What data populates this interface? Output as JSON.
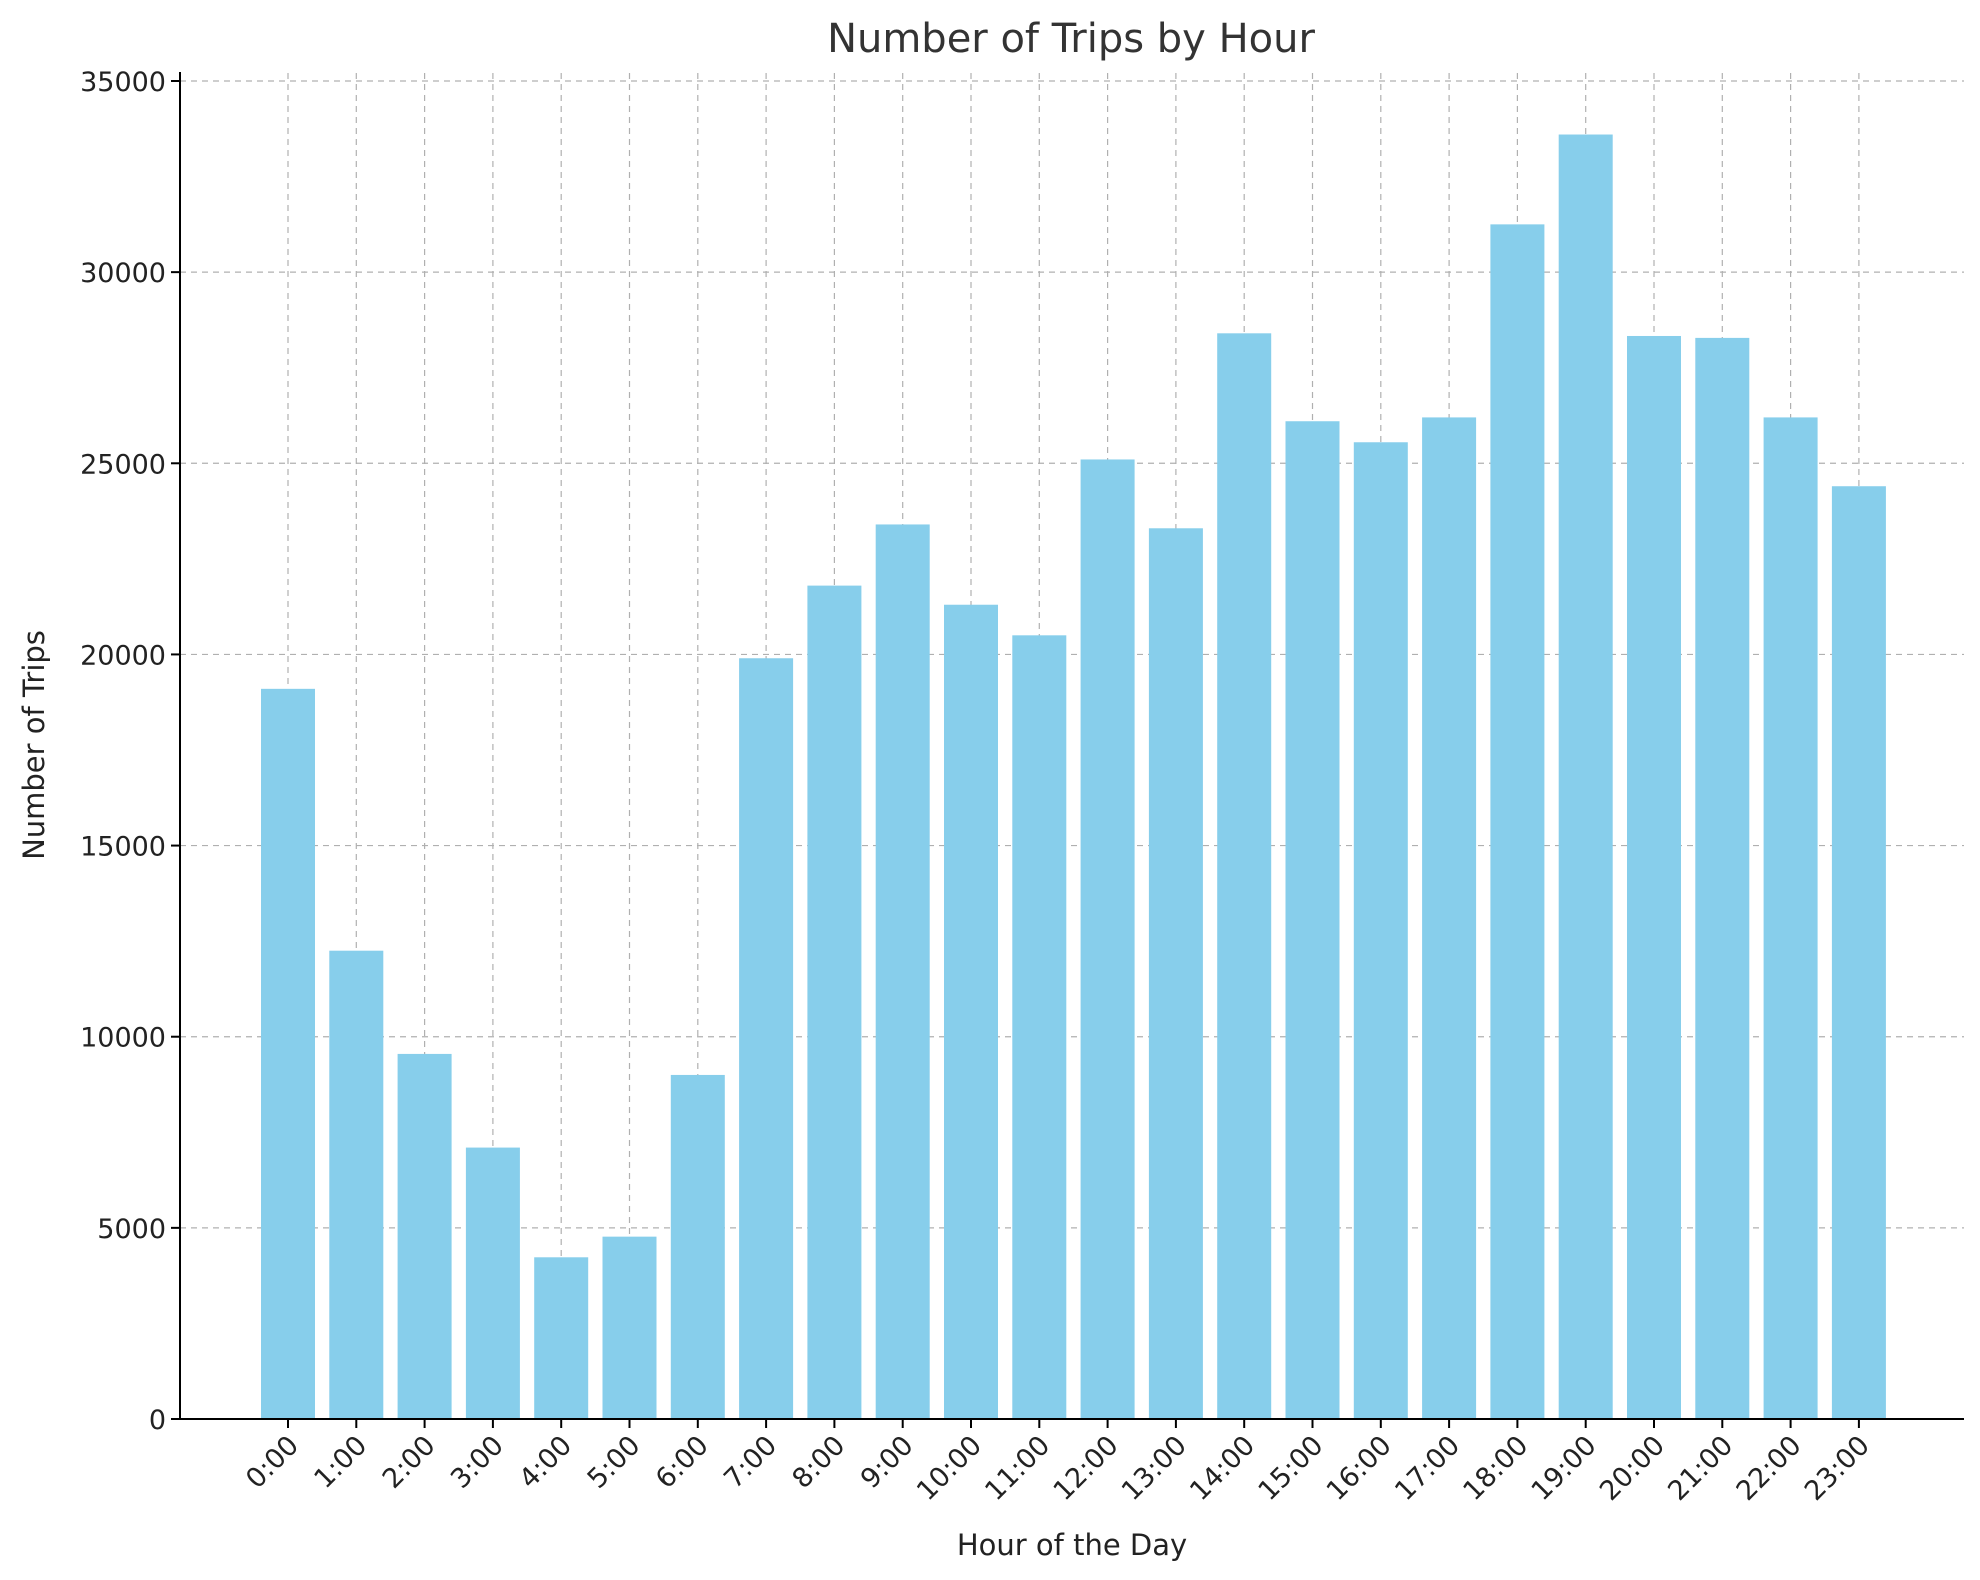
{
  "chart_data": {
    "type": "bar",
    "title": "Number of Trips by Hour",
    "xlabel": "Hour of the Day",
    "ylabel": "Number of Trips",
    "categories": [
      "0:00",
      "1:00",
      "2:00",
      "3:00",
      "4:00",
      "5:00",
      "6:00",
      "7:00",
      "8:00",
      "9:00",
      "10:00",
      "11:00",
      "12:00",
      "13:00",
      "14:00",
      "15:00",
      "16:00",
      "17:00",
      "18:00",
      "19:00",
      "20:00",
      "21:00",
      "22:00",
      "23:00"
    ],
    "values": [
      19100,
      12250,
      9550,
      7100,
      4230,
      4770,
      9000,
      19900,
      21800,
      23400,
      21300,
      20500,
      25100,
      23300,
      28400,
      26100,
      25550,
      26200,
      31250,
      33600,
      28330,
      28280,
      26200,
      24400
    ],
    "ylim": [
      0,
      35000
    ],
    "yticks": [
      "0",
      "5000",
      "10000",
      "15000",
      "20000",
      "25000",
      "30000",
      "35000"
    ],
    "grid": true,
    "bar_color": "#87CEEB"
  }
}
